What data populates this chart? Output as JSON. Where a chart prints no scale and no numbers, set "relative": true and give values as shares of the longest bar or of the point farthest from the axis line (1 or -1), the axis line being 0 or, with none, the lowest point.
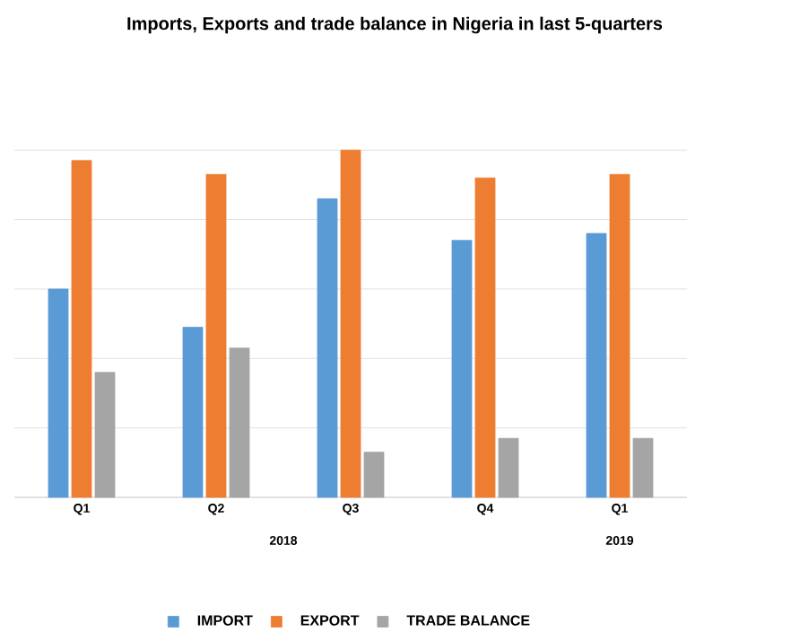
{
  "chart_data": {
    "type": "bar",
    "title": "Imports, Exports and trade balance in Nigeria in last 5-quarters",
    "categories": [
      "Q1",
      "Q2",
      "Q3",
      "Q4",
      "Q1"
    ],
    "relative": true,
    "series": [
      {
        "name": "IMPORT",
        "color": "#5b9bd5",
        "values": [
          0.6,
          0.49,
          0.86,
          0.74,
          0.76
        ]
      },
      {
        "name": "EXPORT",
        "color": "#ed7d31",
        "values": [
          0.97,
          0.93,
          1.0,
          0.92,
          0.93
        ]
      },
      {
        "name": "TRADE BALANCE",
        "color": "#a5a5a5",
        "values": [
          0.36,
          0.43,
          0.13,
          0.17,
          0.17
        ]
      }
    ],
    "annotations": [
      "2018",
      "2019"
    ],
    "grid": "y",
    "legend": "bottom"
  }
}
